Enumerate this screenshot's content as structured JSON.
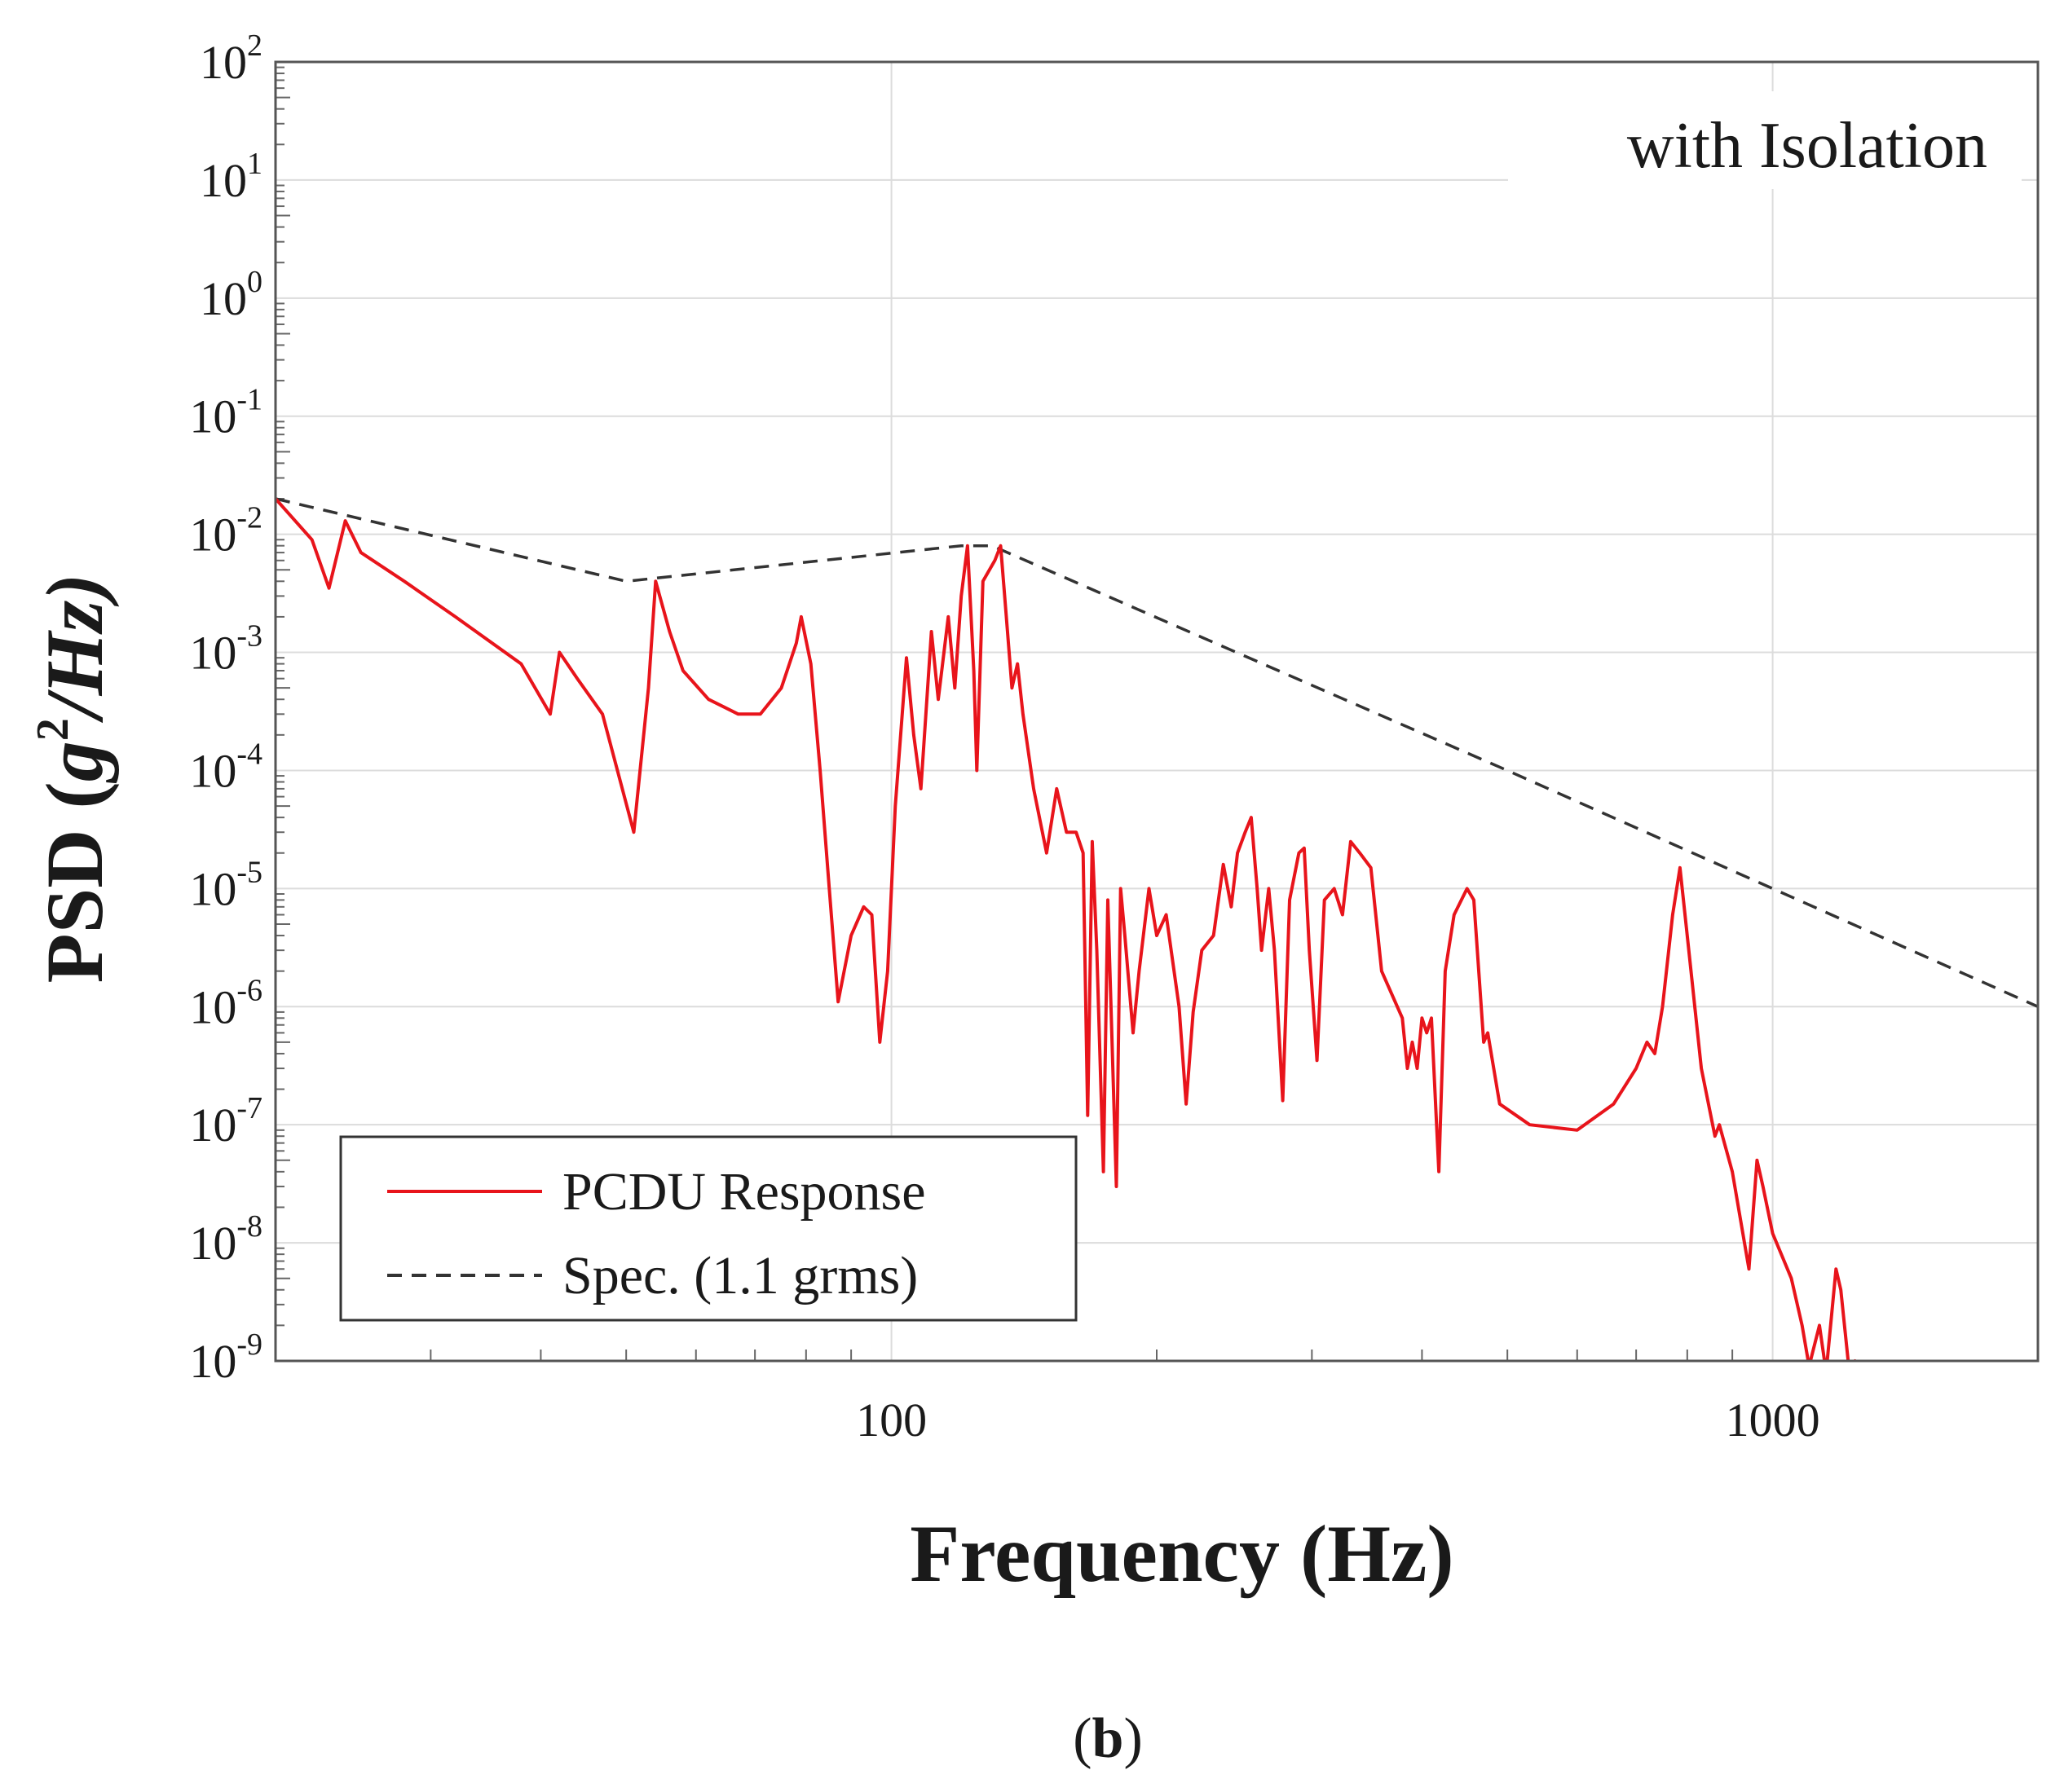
{
  "chart_data": {
    "type": "line",
    "xscale": "log",
    "yscale": "log",
    "xlim": [
      20,
      2000
    ],
    "ylim": [
      1e-09,
      100
    ],
    "xlabel": "Frequency (Hz)",
    "ylabel": {
      "prefix": "PSD (",
      "base": "g",
      "sup": "2",
      "suffix": "/Hz)"
    },
    "grid": true,
    "annotation": "with Isolation",
    "panel_label": {
      "open": "(",
      "letter": "b",
      "close": ")"
    },
    "x_ticks": [
      {
        "value": 100,
        "label": "100"
      },
      {
        "value": 1000,
        "label": "1000"
      }
    ],
    "y_ticks": [
      {
        "value": 100.0,
        "base": "10",
        "exp": "2"
      },
      {
        "value": 10.0,
        "base": "10",
        "exp": "1"
      },
      {
        "value": 1.0,
        "base": "10",
        "exp": "0"
      },
      {
        "value": 0.1,
        "base": "10",
        "exp": "-1"
      },
      {
        "value": 0.01,
        "base": "10",
        "exp": "-2"
      },
      {
        "value": 0.001,
        "base": "10",
        "exp": "-3"
      },
      {
        "value": 0.0001,
        "base": "10",
        "exp": "-4"
      },
      {
        "value": 1e-05,
        "base": "10",
        "exp": "-5"
      },
      {
        "value": 1e-06,
        "base": "10",
        "exp": "-6"
      },
      {
        "value": 1e-07,
        "base": "10",
        "exp": "-7"
      },
      {
        "value": 1e-08,
        "base": "10",
        "exp": "-8"
      },
      {
        "value": 1e-09,
        "base": "10",
        "exp": "-9"
      }
    ],
    "legend_position": "bottom-left",
    "series": [
      {
        "name": "PCDU Response",
        "color": "#e8141b",
        "style": "solid",
        "points": [
          [
            20,
            0.02
          ],
          [
            22,
            0.009
          ],
          [
            23,
            0.0035
          ],
          [
            24,
            0.013
          ],
          [
            25,
            0.007
          ],
          [
            28,
            0.004
          ],
          [
            32,
            0.002
          ],
          [
            38,
            0.0008
          ],
          [
            41,
            0.0003
          ],
          [
            42,
            0.001
          ],
          [
            44,
            0.0006
          ],
          [
            47,
            0.0003
          ],
          [
            51,
            3e-05
          ],
          [
            53,
            0.0005
          ],
          [
            54,
            0.004
          ],
          [
            56,
            0.0015
          ],
          [
            58,
            0.0007
          ],
          [
            62,
            0.0004
          ],
          [
            67,
            0.0003
          ],
          [
            71,
            0.0003
          ],
          [
            75,
            0.0005
          ],
          [
            78,
            0.0012
          ],
          [
            79,
            0.002
          ],
          [
            81,
            0.0008
          ],
          [
            83,
            0.0001
          ],
          [
            85,
            1e-05
          ],
          [
            87,
            1.1e-06
          ],
          [
            90,
            4e-06
          ],
          [
            93,
            7e-06
          ],
          [
            95,
            6e-06
          ],
          [
            97,
            5e-07
          ],
          [
            99,
            2e-06
          ],
          [
            101,
            5e-05
          ],
          [
            104,
            0.0009
          ],
          [
            106,
            0.0002
          ],
          [
            108,
            7e-05
          ],
          [
            111,
            0.0015
          ],
          [
            113,
            0.0004
          ],
          [
            116,
            0.002
          ],
          [
            118,
            0.0005
          ],
          [
            120,
            0.003
          ],
          [
            122,
            0.008
          ],
          [
            124,
            0.0007
          ],
          [
            125,
            0.0001
          ],
          [
            127,
            0.004
          ],
          [
            131,
            0.006
          ],
          [
            133,
            0.008
          ],
          [
            135,
            0.002
          ],
          [
            137,
            0.0005
          ],
          [
            139,
            0.0008
          ],
          [
            141,
            0.0003
          ],
          [
            145,
            7e-05
          ],
          [
            150,
            2e-05
          ],
          [
            154,
            7e-05
          ],
          [
            158,
            3e-05
          ],
          [
            162,
            3e-05
          ],
          [
            165,
            2e-05
          ],
          [
            167,
            1.2e-07
          ],
          [
            169,
            2.5e-05
          ],
          [
            171,
            3e-06
          ],
          [
            174,
            4e-08
          ],
          [
            176,
            8e-06
          ],
          [
            180,
            3e-08
          ],
          [
            182,
            1e-05
          ],
          [
            184,
            4e-06
          ],
          [
            188,
            6e-07
          ],
          [
            191,
            2e-06
          ],
          [
            196,
            1e-05
          ],
          [
            200,
            4e-06
          ],
          [
            205,
            6e-06
          ],
          [
            212,
            1e-06
          ],
          [
            216,
            1.5e-07
          ],
          [
            220,
            9e-07
          ],
          [
            225,
            3e-06
          ],
          [
            232,
            4e-06
          ],
          [
            238,
            1.6e-05
          ],
          [
            243,
            7e-06
          ],
          [
            247,
            2e-05
          ],
          [
            252,
            3e-05
          ],
          [
            256,
            4e-05
          ],
          [
            260,
            1e-05
          ],
          [
            263,
            3e-06
          ],
          [
            268,
            1e-05
          ],
          [
            272,
            3e-06
          ],
          [
            278,
            1.6e-07
          ],
          [
            283,
            8e-06
          ],
          [
            290,
            2e-05
          ],
          [
            294,
            2.2e-05
          ],
          [
            298,
            3e-06
          ],
          [
            304,
            3.5e-07
          ],
          [
            310,
            8e-06
          ],
          [
            318,
            1e-05
          ],
          [
            325,
            6e-06
          ],
          [
            332,
            2.5e-05
          ],
          [
            340,
            2e-05
          ],
          [
            350,
            1.5e-05
          ],
          [
            360,
            2e-06
          ],
          [
            380,
            8e-07
          ],
          [
            385,
            3e-07
          ],
          [
            390,
            5e-07
          ],
          [
            395,
            3e-07
          ],
          [
            400,
            8e-07
          ],
          [
            405,
            6e-07
          ],
          [
            410,
            8e-07
          ],
          [
            418,
            4e-08
          ],
          [
            425,
            2e-06
          ],
          [
            435,
            6e-06
          ],
          [
            450,
            1e-05
          ],
          [
            458,
            8e-06
          ],
          [
            470,
            5e-07
          ],
          [
            475,
            6e-07
          ],
          [
            490,
            1.5e-07
          ],
          [
            530,
            1e-07
          ],
          [
            600,
            9e-08
          ],
          [
            660,
            1.5e-07
          ],
          [
            700,
            3e-07
          ],
          [
            720,
            5e-07
          ],
          [
            735,
            4e-07
          ],
          [
            750,
            1e-06
          ],
          [
            770,
            6e-06
          ],
          [
            785,
            1.5e-05
          ],
          [
            800,
            4e-06
          ],
          [
            830,
            3e-07
          ],
          [
            860,
            8e-08
          ],
          [
            870,
            1e-07
          ],
          [
            900,
            4e-08
          ],
          [
            940,
            6e-09
          ],
          [
            960,
            5e-08
          ],
          [
            975,
            3e-08
          ],
          [
            1000,
            1.2e-08
          ],
          [
            1050,
            5e-09
          ],
          [
            1080,
            2e-09
          ],
          [
            1100,
            9e-10
          ],
          [
            1130,
            2e-09
          ],
          [
            1150,
            8e-10
          ],
          [
            1180,
            6e-09
          ],
          [
            1195,
            4e-09
          ],
          [
            1220,
            9e-10
          ],
          [
            1240,
            1e-09
          ],
          [
            1260,
            8e-10
          ],
          [
            1290,
            1e-09
          ]
        ]
      },
      {
        "name": "Spec. (1.1 grms)",
        "color": "#333333",
        "style": "dashed",
        "points": [
          [
            20,
            0.02
          ],
          [
            50,
            0.004
          ],
          [
            120,
            0.008
          ],
          [
            130,
            0.008
          ],
          [
            500,
            0.0001
          ],
          [
            2000,
            1e-06
          ]
        ]
      }
    ]
  }
}
